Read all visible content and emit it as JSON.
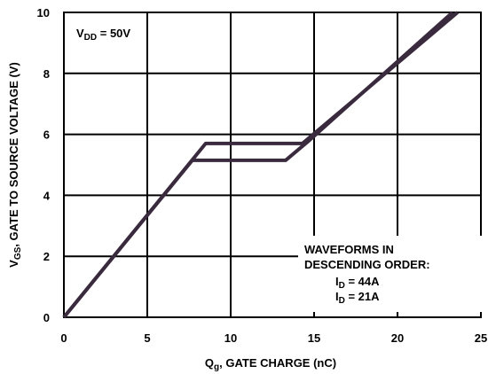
{
  "chart_data": {
    "type": "line",
    "xlabel": "Q_g, GATE CHARGE (nC)",
    "xlabel_main": "Q",
    "xlabel_sub": "g",
    "xlabel_rest": ", GATE CHARGE (nC)",
    "ylabel": "V_GS, GATE TO SOURCE VOLTAGE (V)",
    "ylabel_main": "V",
    "ylabel_sub": "GS",
    "ylabel_rest": ", GATE TO SOURCE VOLTAGE (V)",
    "xlim": [
      0,
      25
    ],
    "ylim": [
      0,
      10
    ],
    "x_ticks": [
      0,
      5,
      10,
      15,
      20,
      25
    ],
    "y_ticks": [
      0,
      2,
      4,
      6,
      8,
      10
    ],
    "grid": true,
    "annotations": {
      "vdd_main": "V",
      "vdd_sub": "DD",
      "vdd_rest": " = 50V",
      "waveforms_line1": "WAVEFORMS IN",
      "waveforms_line2": "DESCENDING ORDER:",
      "id1_main": "I",
      "id1_sub": "D",
      "id1_rest": " = 44A",
      "id2_main": "I",
      "id2_sub": "D",
      "id2_rest": " = 21A"
    },
    "series": [
      {
        "name": "I_D = 44A",
        "x": [
          0,
          8.5,
          14.3,
          23.6
        ],
        "y": [
          0,
          5.7,
          5.7,
          10.0
        ]
      },
      {
        "name": "I_D = 21A",
        "x": [
          0,
          7.7,
          13.3,
          14.6,
          23.3
        ],
        "y": [
          0,
          5.15,
          5.15,
          5.75,
          10.0
        ]
      }
    ],
    "line_color": "#3a2a3e"
  }
}
